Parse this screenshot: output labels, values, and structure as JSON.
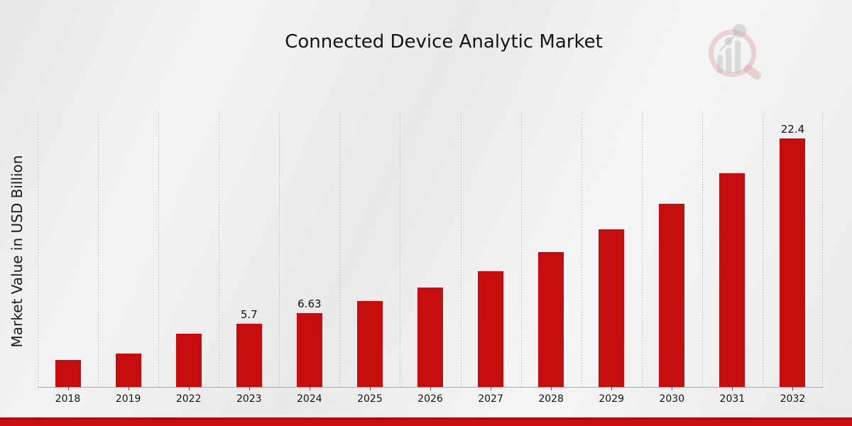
{
  "page": {
    "title": "Connected Device Analytic Market",
    "y_axis_title": "Market Value in USD Billion"
  },
  "chart_data": {
    "type": "bar",
    "title": "Connected Device Analytic Market",
    "xlabel": "",
    "ylabel": "Market Value in USD Billion",
    "categories": [
      "2018",
      "2019",
      "2022",
      "2023",
      "2024",
      "2025",
      "2026",
      "2027",
      "2028",
      "2029",
      "2030",
      "2031",
      "2032"
    ],
    "values": [
      2.44,
      3.02,
      4.82,
      5.7,
      6.63,
      7.72,
      8.99,
      10.46,
      12.18,
      14.19,
      16.52,
      19.24,
      22.4
    ],
    "bar_labels": [
      "",
      "",
      "",
      "5.7",
      "6.63",
      "",
      "",
      "",
      "",
      "",
      "",
      "",
      "22.4"
    ],
    "ylim": [
      0,
      24.7
    ],
    "y_ticks_shown": false,
    "grid": "vertical dashed separators at category boundaries",
    "legend": "none",
    "bar_color": "#c50d0d"
  },
  "style": {
    "background": "#ececec",
    "bar_color": "#c50d0d",
    "grid_color": "#c7c7c7",
    "axis_color": "#ababab",
    "text_color": "#141414",
    "accent_bar_top": "#9c0a0a",
    "accent_bar_main": "#cb0d0d"
  },
  "watermark": {
    "icon": "magnifier-bar-chart-logo",
    "circle_color": "#c96a6a",
    "bars_color": "#a8a8a8"
  }
}
